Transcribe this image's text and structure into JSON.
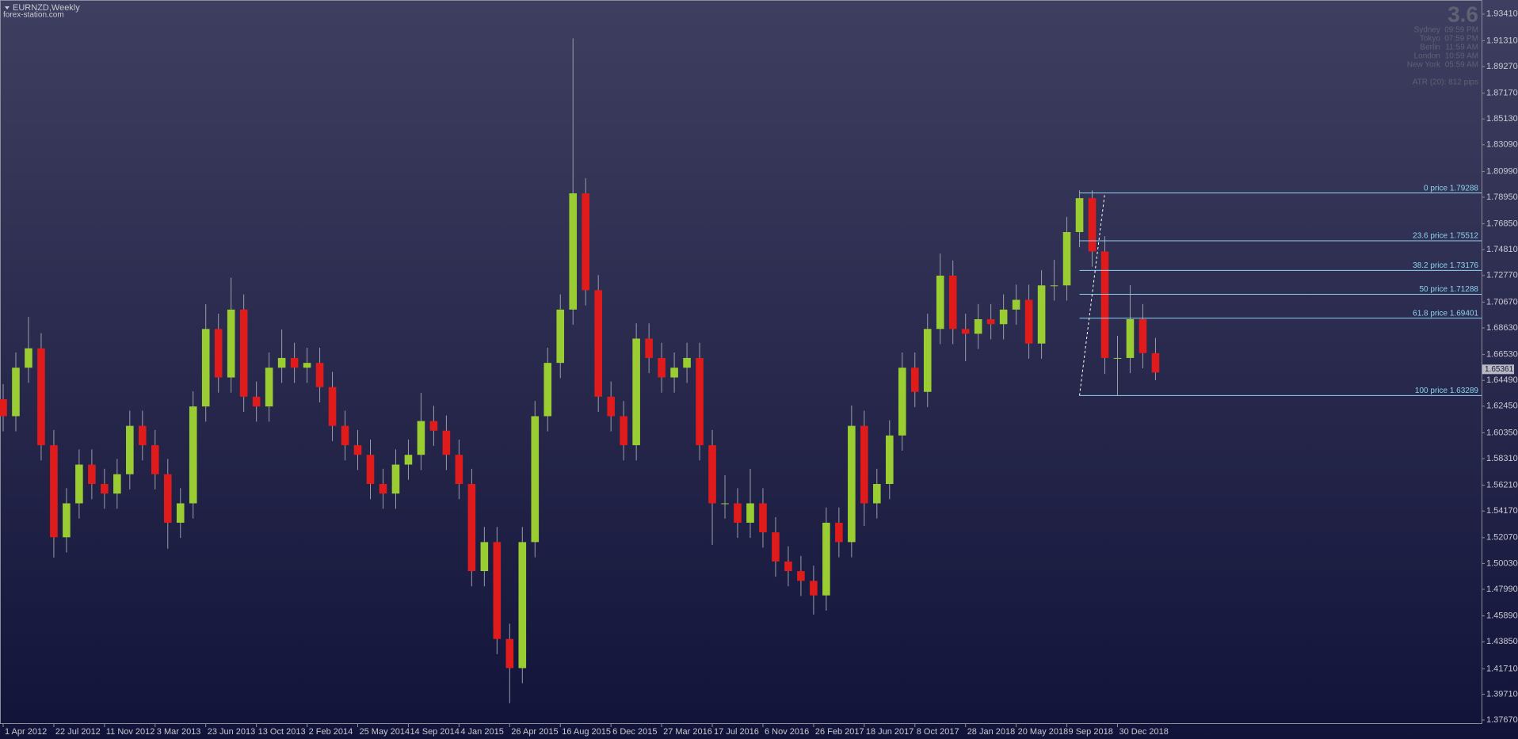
{
  "header": {
    "symbol": "EURNZD,Weekly",
    "source": "forex-station.com"
  },
  "info": {
    "spread": "3.6",
    "clocks": [
      [
        "Sydney",
        "09:59 PM"
      ],
      [
        "Tokyo",
        "07:59 PM"
      ],
      [
        "Berlin",
        "11:59 AM"
      ],
      [
        "London",
        "10:59 AM"
      ],
      [
        "New York",
        "05:59 AM"
      ]
    ],
    "atr": "ATR (20): 812 pips"
  },
  "chart_data": {
    "type": "candlestick",
    "x": [
      0,
      4,
      8,
      12,
      16,
      20,
      24,
      28,
      32,
      36,
      40,
      44,
      48,
      52,
      56,
      60,
      64,
      68,
      72,
      76,
      80,
      84,
      88,
      92,
      96,
      100,
      104,
      108,
      112,
      116,
      120,
      124,
      128,
      132,
      136,
      140,
      144,
      148,
      152,
      156,
      160,
      164,
      168,
      172,
      176,
      180,
      184,
      188,
      192,
      196,
      200,
      204,
      208,
      212,
      216,
      220,
      224,
      228,
      232,
      236,
      240,
      244,
      248,
      252,
      256,
      260,
      264,
      268,
      272,
      276,
      280,
      284,
      288,
      292,
      296,
      300,
      304,
      308,
      312,
      316,
      320,
      324,
      328,
      332,
      336,
      340,
      344,
      348,
      352,
      356,
      360,
      364
    ],
    "open": [
      1.63,
      1.6166,
      1.6549,
      1.6702,
      1.5937,
      1.521,
      1.5478,
      1.5784,
      1.5631,
      1.5555,
      1.5708,
      1.609,
      1.5937,
      1.5708,
      1.5325,
      1.5478,
      1.6243,
      1.6855,
      1.6472,
      1.7008,
      1.632,
      1.6243,
      1.6549,
      1.6626,
      1.6549,
      1.6587,
      1.6396,
      1.609,
      1.5937,
      1.5861,
      1.5631,
      1.5555,
      1.5784,
      1.5861,
      1.6128,
      1.6052,
      1.5861,
      1.5631,
      1.4943,
      1.5172,
      1.4407,
      1.4177,
      1.5172,
      1.6166,
      1.6587,
      1.7008,
      1.7926,
      1.7161,
      1.632,
      1.6166,
      1.5937,
      1.6779,
      1.6626,
      1.6472,
      1.6549,
      1.6626,
      1.5937,
      1.5478,
      1.5478,
      1.5325,
      1.5478,
      1.5249,
      1.5019,
      1.4943,
      1.4866,
      1.4751,
      1.5325,
      1.5172,
      1.609,
      1.5478,
      1.5631,
      1.6014,
      1.6549,
      1.6358,
      1.6855,
      1.7276,
      1.6855,
      1.6817,
      1.6932,
      1.6893,
      1.7008,
      1.7085,
      1.674,
      1.7199,
      1.7199,
      1.762,
      1.7888,
      1.7467,
      1.6626,
      1.6626,
      1.6932,
      1.6664
    ],
    "high": [
      1.642,
      1.6669,
      1.695,
      1.6822,
      1.6057,
      1.5598,
      1.5904,
      1.5904,
      1.5751,
      1.5828,
      1.621,
      1.621,
      1.6057,
      1.5828,
      1.5598,
      1.6363,
      1.705,
      1.6975,
      1.726,
      1.7128,
      1.644,
      1.6669,
      1.685,
      1.6746,
      1.6707,
      1.6707,
      1.6516,
      1.621,
      1.6057,
      1.5981,
      1.5751,
      1.5904,
      1.5981,
      1.635,
      1.6248,
      1.6172,
      1.5981,
      1.5751,
      1.5292,
      1.5292,
      1.4527,
      1.5292,
      1.6286,
      1.6707,
      1.7128,
      1.915,
      1.8046,
      1.7281,
      1.644,
      1.6286,
      1.6899,
      1.6899,
      1.6746,
      1.6669,
      1.6746,
      1.6746,
      1.6057,
      1.57,
      1.5598,
      1.575,
      1.5598,
      1.5369,
      1.5139,
      1.5063,
      1.4986,
      1.5445,
      1.5445,
      1.625,
      1.621,
      1.5751,
      1.6134,
      1.6669,
      1.6669,
      1.6975,
      1.745,
      1.7396,
      1.6975,
      1.7052,
      1.7052,
      1.7128,
      1.7205,
      1.7205,
      1.7319,
      1.74,
      1.774,
      1.795,
      1.795,
      1.7587,
      1.68,
      1.72,
      1.7052,
      1.6784
    ],
    "low": [
      1.6046,
      1.6046,
      1.6429,
      1.5817,
      1.505,
      1.509,
      1.5358,
      1.5511,
      1.5435,
      1.5435,
      1.5588,
      1.5817,
      1.5588,
      1.512,
      1.5205,
      1.5358,
      1.6123,
      1.6352,
      1.6352,
      1.62,
      1.6123,
      1.6123,
      1.6429,
      1.6429,
      1.6429,
      1.6276,
      1.597,
      1.5817,
      1.5741,
      1.5511,
      1.5435,
      1.5435,
      1.5664,
      1.5741,
      1.5932,
      1.5741,
      1.5511,
      1.4823,
      1.4823,
      1.4287,
      1.39,
      1.4057,
      1.5052,
      1.6046,
      1.6467,
      1.6888,
      1.7041,
      1.62,
      1.6046,
      1.5817,
      1.5817,
      1.6506,
      1.6352,
      1.6352,
      1.6429,
      1.5817,
      1.515,
      1.5358,
      1.5205,
      1.5205,
      1.5129,
      1.4899,
      1.4823,
      1.4746,
      1.46,
      1.4631,
      1.5052,
      1.5052,
      1.53,
      1.5358,
      1.5511,
      1.5894,
      1.6238,
      1.6238,
      1.6735,
      1.6735,
      1.66,
      1.6697,
      1.6773,
      1.6773,
      1.6888,
      1.662,
      1.662,
      1.7079,
      1.7079,
      1.75,
      1.7347,
      1.65,
      1.6329,
      1.6506,
      1.6544,
      1.645
    ],
    "close": [
      1.6166,
      1.6549,
      1.6702,
      1.5937,
      1.521,
      1.5478,
      1.5784,
      1.5631,
      1.5555,
      1.5708,
      1.609,
      1.5937,
      1.5708,
      1.5325,
      1.5478,
      1.6243,
      1.6855,
      1.6472,
      1.7008,
      1.632,
      1.6243,
      1.6549,
      1.6626,
      1.6549,
      1.6587,
      1.6396,
      1.609,
      1.5937,
      1.5861,
      1.5631,
      1.5555,
      1.5784,
      1.5861,
      1.6128,
      1.6052,
      1.5861,
      1.5631,
      1.4943,
      1.5172,
      1.4407,
      1.4177,
      1.5172,
      1.6166,
      1.6587,
      1.7008,
      1.7926,
      1.7161,
      1.632,
      1.6166,
      1.5937,
      1.6779,
      1.6626,
      1.6472,
      1.6549,
      1.6626,
      1.5937,
      1.5478,
      1.5478,
      1.5325,
      1.5478,
      1.5249,
      1.5019,
      1.4943,
      1.4866,
      1.4751,
      1.5325,
      1.5172,
      1.609,
      1.5478,
      1.5631,
      1.6014,
      1.6549,
      1.6358,
      1.6855,
      1.7276,
      1.6855,
      1.6817,
      1.6932,
      1.6893,
      1.7008,
      1.7085,
      1.674,
      1.7199,
      1.7199,
      1.762,
      1.7888,
      1.7467,
      1.6626,
      1.6626,
      1.6932,
      1.6664,
      1.6511
    ],
    "up_color": "#9acd32",
    "down_color": "#e01b1b",
    "wick_color": "#9a9ca8",
    "xlim": [
      -1,
      467
    ],
    "ylim": [
      1.3736,
      1.944
    ],
    "xticks": [
      {
        "value": 0,
        "label": "1 Apr 2012"
      },
      {
        "value": 16,
        "label": "22 Jul 2012"
      },
      {
        "value": 32,
        "label": "11 Nov 2012"
      },
      {
        "value": 48,
        "label": "3 Mar 2013"
      },
      {
        "value": 64,
        "label": "23 Jun 2013"
      },
      {
        "value": 80,
        "label": "13 Oct 2013"
      },
      {
        "value": 96,
        "label": "2 Feb 2014"
      },
      {
        "value": 112,
        "label": "25 May 2014"
      },
      {
        "value": 128,
        "label": "14 Sep 2014"
      },
      {
        "value": 144,
        "label": "4 Jan 2015"
      },
      {
        "value": 160,
        "label": "26 Apr 2015"
      },
      {
        "value": 176,
        "label": "16 Aug 2015"
      },
      {
        "value": 192,
        "label": "6 Dec 2015"
      },
      {
        "value": 208,
        "label": "27 Mar 2016"
      },
      {
        "value": 224,
        "label": "17 Jul 2016"
      },
      {
        "value": 240,
        "label": "6 Nov 2016"
      },
      {
        "value": 256,
        "label": "26 Feb 2017"
      },
      {
        "value": 272,
        "label": "18 Jun 2017"
      },
      {
        "value": 288,
        "label": "8 Oct 2017"
      },
      {
        "value": 304,
        "label": "28 Jan 2018"
      },
      {
        "value": 320,
        "label": "20 May 2018"
      },
      {
        "value": 336,
        "label": "9 Sep 2018"
      },
      {
        "value": 352,
        "label": "30 Dec 2018"
      }
    ],
    "yticks": [
      {
        "value": 1.9341,
        "label": "1.93410"
      },
      {
        "value": 1.9131,
        "label": "1.91310"
      },
      {
        "value": 1.8927,
        "label": "1.89270"
      },
      {
        "value": 1.8717,
        "label": "1.87170"
      },
      {
        "value": 1.8513,
        "label": "1.85130"
      },
      {
        "value": 1.8309,
        "label": "1.83090"
      },
      {
        "value": 1.8099,
        "label": "1.80990"
      },
      {
        "value": 1.7895,
        "label": "1.78950"
      },
      {
        "value": 1.7685,
        "label": "1.76850"
      },
      {
        "value": 1.7481,
        "label": "1.74810"
      },
      {
        "value": 1.7277,
        "label": "1.72770"
      },
      {
        "value": 1.7067,
        "label": "1.70670"
      },
      {
        "value": 1.6863,
        "label": "1.68630"
      },
      {
        "value": 1.6653,
        "label": "1.66530"
      },
      {
        "value": 1.6449,
        "label": "1.64490"
      },
      {
        "value": 1.6245,
        "label": "1.62450"
      },
      {
        "value": 1.6035,
        "label": "1.60350"
      },
      {
        "value": 1.5831,
        "label": "1.58310"
      },
      {
        "value": 1.5621,
        "label": "1.56210"
      },
      {
        "value": 1.5417,
        "label": "1.54170"
      },
      {
        "value": 1.5207,
        "label": "1.52070"
      },
      {
        "value": 1.5003,
        "label": "1.50030"
      },
      {
        "value": 1.4799,
        "label": "1.47990"
      },
      {
        "value": 1.4589,
        "label": "1.45890"
      },
      {
        "value": 1.4385,
        "label": "1.43850"
      },
      {
        "value": 1.4171,
        "label": "1.41710"
      },
      {
        "value": 1.3971,
        "label": "1.39710"
      },
      {
        "value": 1.3767,
        "label": "1.37670"
      }
    ],
    "last_price": 1.65361,
    "fib": {
      "x": [
        340,
        348
      ],
      "color": "#8fd3f0",
      "levels": [
        {
          "value": 1.79288,
          "label": "0 price 1.79288"
        },
        {
          "value": 1.75512,
          "label": "23.6 price 1.75512"
        },
        {
          "value": 1.73176,
          "label": "38.2 price 1.73176"
        },
        {
          "value": 1.71288,
          "label": "50 price 1.71288"
        },
        {
          "value": 1.69401,
          "label": "61.8 price 1.69401"
        },
        {
          "value": 1.63289,
          "label": "100 price 1.63289"
        }
      ]
    }
  }
}
